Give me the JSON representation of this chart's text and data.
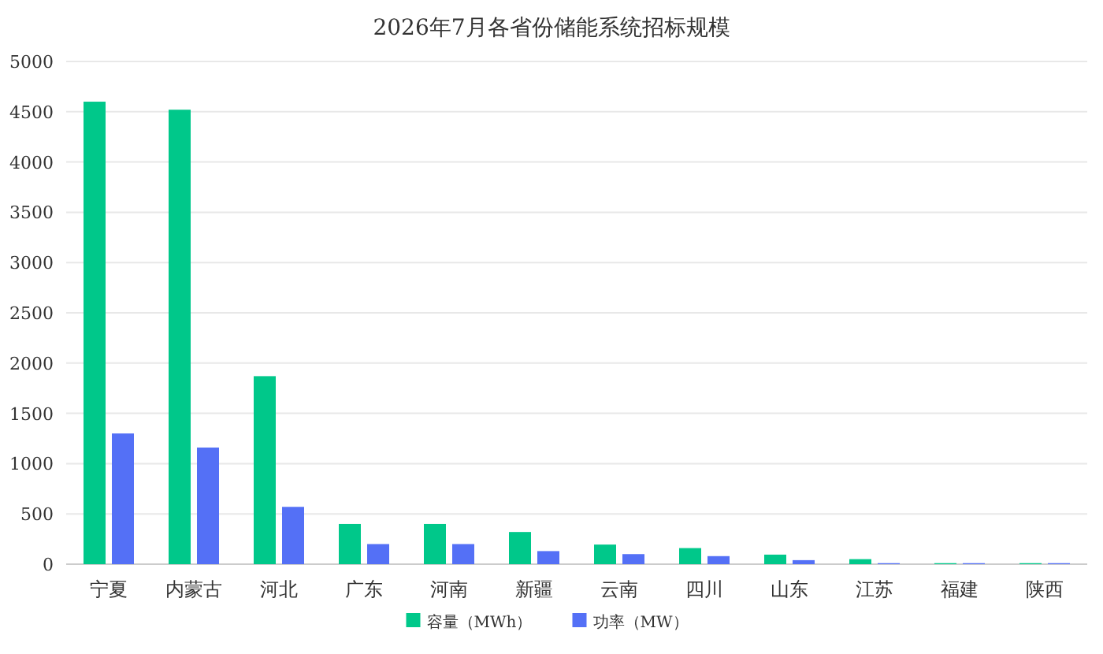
{
  "chart_data": {
    "type": "bar",
    "title": "2026年7月各省份储能系统招标规模",
    "categories": [
      "宁夏",
      "内蒙古",
      "河北",
      "广东",
      "河南",
      "新疆",
      "云南",
      "四川",
      "山东",
      "江苏",
      "福建",
      "陕西"
    ],
    "series": [
      {
        "name": "容量（MWh）",
        "color": "#00c88a",
        "values": [
          4600,
          4520,
          1870,
          400,
          400,
          320,
          195,
          160,
          95,
          50,
          10,
          10
        ]
      },
      {
        "name": "功率（MW）",
        "color": "#5470f6",
        "values": [
          1300,
          1160,
          570,
          200,
          200,
          130,
          100,
          80,
          40,
          10,
          10,
          10
        ]
      }
    ],
    "ylim": [
      0,
      5000
    ],
    "yticks": [
      0,
      500,
      1000,
      1500,
      2000,
      2500,
      3000,
      3500,
      4000,
      4500,
      5000
    ],
    "grid": "y",
    "legend": "bottom"
  }
}
